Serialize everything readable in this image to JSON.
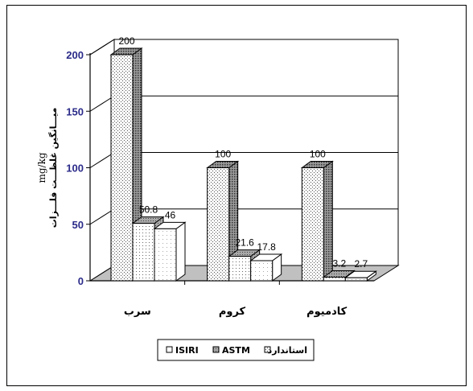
{
  "chart_data": {
    "type": "bar",
    "categories": [
      "سرب",
      "کروم",
      "کادمیوم"
    ],
    "series": [
      {
        "name": "استاندارد",
        "values": [
          200,
          100,
          100
        ]
      },
      {
        "name": "ASTM",
        "values": [
          50.8,
          21.6,
          3.2
        ]
      },
      {
        "name": "ISIRI",
        "values": [
          46,
          17.8,
          2.7
        ]
      }
    ],
    "ylabel": "میـــانگین غلظـــت فلـــزات",
    "yunit": "mg/kg",
    "ylim": [
      0,
      200
    ],
    "yticks": [
      0,
      50,
      100,
      150,
      200
    ],
    "grid": true,
    "legend_position": "bottom",
    "three_d": true
  }
}
